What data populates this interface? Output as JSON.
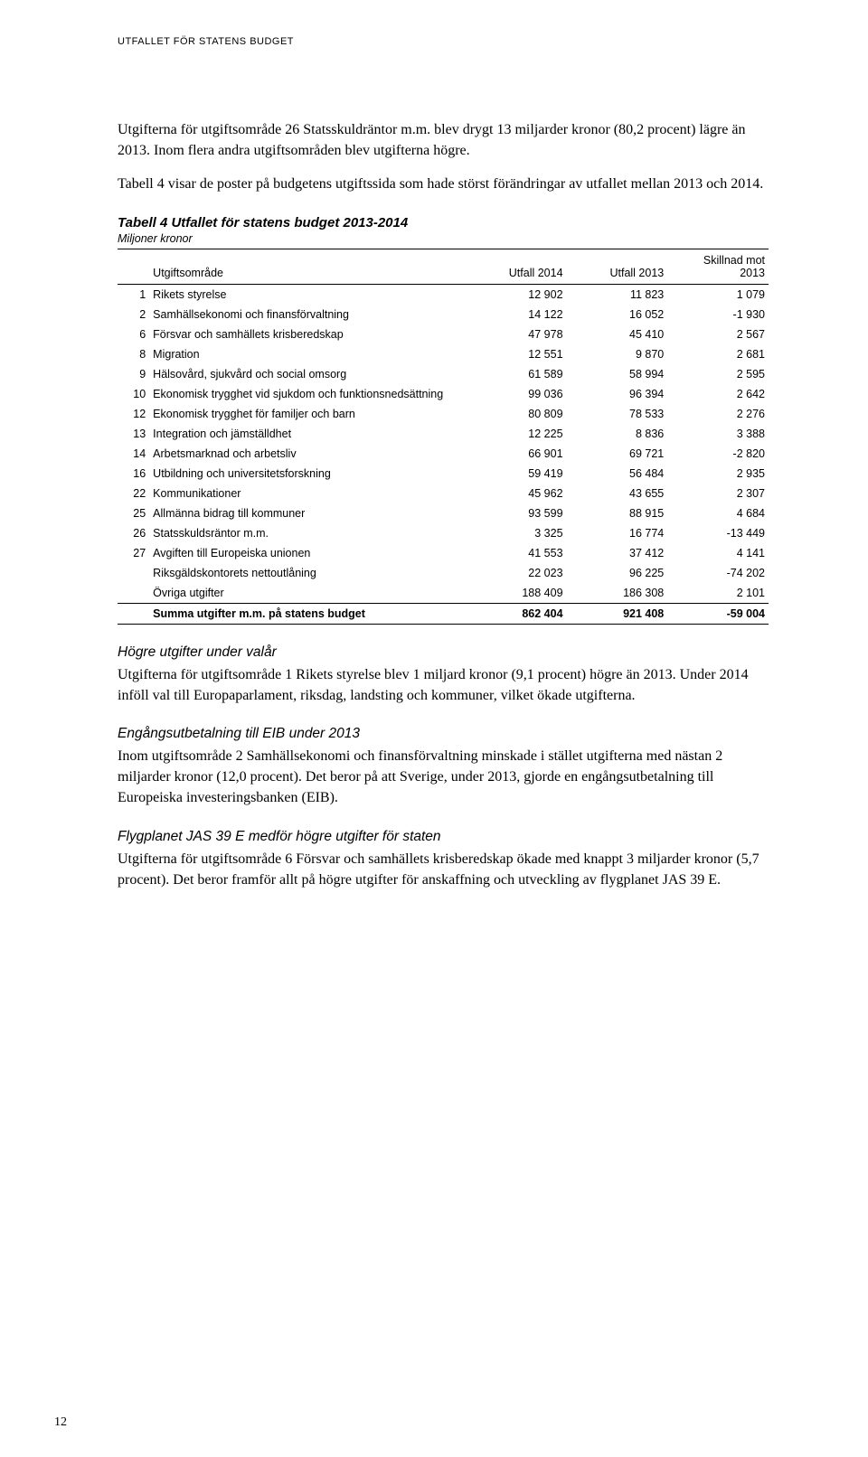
{
  "header_label": "UTFALLET FÖR STATENS BUDGET",
  "page_number": "12",
  "intro_para1": "Utgifterna för utgiftsområde 26 Statsskuldräntor m.m. blev drygt 13 miljarder kronor (80,2 procent) lägre än 2013. Inom flera andra utgiftsområden blev utgifterna högre.",
  "intro_para2": "Tabell 4 visar de poster på budgetens utgiftssida som hade störst förändringar av utfallet mellan 2013 och 2014.",
  "table": {
    "title": "Tabell 4 Utfallet för statens budget 2013-2014",
    "subtitle": "Miljoner kronor",
    "col_headers": {
      "area": "Utgiftsområde",
      "c1": "Utfall 2014",
      "c2": "Utfall 2013",
      "c3_line1": "Skillnad mot",
      "c3_line2": "2013"
    },
    "rows": [
      {
        "n": "1",
        "label": "Rikets styrelse",
        "v1": "12 902",
        "v2": "11 823",
        "v3": "1 079"
      },
      {
        "n": "2",
        "label": "Samhällsekonomi och finansförvaltning",
        "v1": "14 122",
        "v2": "16 052",
        "v3": "-1 930"
      },
      {
        "n": "6",
        "label": "Försvar och samhällets krisberedskap",
        "v1": "47 978",
        "v2": "45 410",
        "v3": "2 567"
      },
      {
        "n": "8",
        "label": "Migration",
        "v1": "12 551",
        "v2": "9 870",
        "v3": "2 681"
      },
      {
        "n": "9",
        "label": "Hälsovård, sjukvård och social omsorg",
        "v1": "61 589",
        "v2": "58 994",
        "v3": "2 595"
      },
      {
        "n": "10",
        "label": "Ekonomisk trygghet vid sjukdom och funktionsnedsättning",
        "v1": "99 036",
        "v2": "96 394",
        "v3": "2 642"
      },
      {
        "n": "12",
        "label": "Ekonomisk trygghet för familjer och barn",
        "v1": "80 809",
        "v2": "78 533",
        "v3": "2 276"
      },
      {
        "n": "13",
        "label": "Integration och jämställdhet",
        "v1": "12 225",
        "v2": "8 836",
        "v3": "3 388"
      },
      {
        "n": "14",
        "label": "Arbetsmarknad och arbetsliv",
        "v1": "66 901",
        "v2": "69 721",
        "v3": "-2 820"
      },
      {
        "n": "16",
        "label": "Utbildning och universitetsforskning",
        "v1": "59 419",
        "v2": "56 484",
        "v3": "2 935"
      },
      {
        "n": "22",
        "label": "Kommunikationer",
        "v1": "45 962",
        "v2": "43 655",
        "v3": "2 307"
      },
      {
        "n": "25",
        "label": "Allmänna bidrag till kommuner",
        "v1": "93 599",
        "v2": "88 915",
        "v3": "4 684"
      },
      {
        "n": "26",
        "label": "Statsskuldsräntor m.m.",
        "v1": "3 325",
        "v2": "16 774",
        "v3": "-13 449"
      },
      {
        "n": "27",
        "label": "Avgiften till Europeiska unionen",
        "v1": "41 553",
        "v2": "37 412",
        "v3": "4 141"
      },
      {
        "n": "",
        "label": "Riksgäldskontorets nettoutlåning",
        "v1": "22 023",
        "v2": "96 225",
        "v3": "-74 202"
      },
      {
        "n": "",
        "label": "Övriga utgifter",
        "v1": "188 409",
        "v2": "186 308",
        "v3": "2 101"
      }
    ],
    "sum_row": {
      "label": "Summa utgifter m.m. på statens budget",
      "v1": "862 404",
      "v2": "921 408",
      "v3": "-59 004"
    }
  },
  "sections": [
    {
      "heading": "Högre utgifter under valår",
      "body": "Utgifterna för utgiftsområde 1 Rikets styrelse blev 1 miljard kronor (9,1 procent) högre än 2013. Under 2014 inföll val till Europaparlament, riksdag, landsting och kommuner, vilket ökade utgifterna."
    },
    {
      "heading": "Engångsutbetalning till EIB under 2013",
      "body": "Inom utgiftsområde 2 Samhällsekonomi och finansförvaltning minskade i stället utgifterna med nästan 2 miljarder kronor (12,0 procent). Det beror på att Sverige, under 2013, gjorde en engångsutbetalning till Europeiska investeringsbanken (EIB)."
    },
    {
      "heading": "Flygplanet JAS 39 E medför högre utgifter för staten",
      "body": "Utgifterna för utgiftsområde 6 Försvar och samhällets krisberedskap ökade med knappt 3 miljarder kronor (5,7 procent). Det beror framför allt på högre utgifter för anskaffning och utveckling av flygplanet JAS 39 E."
    }
  ]
}
